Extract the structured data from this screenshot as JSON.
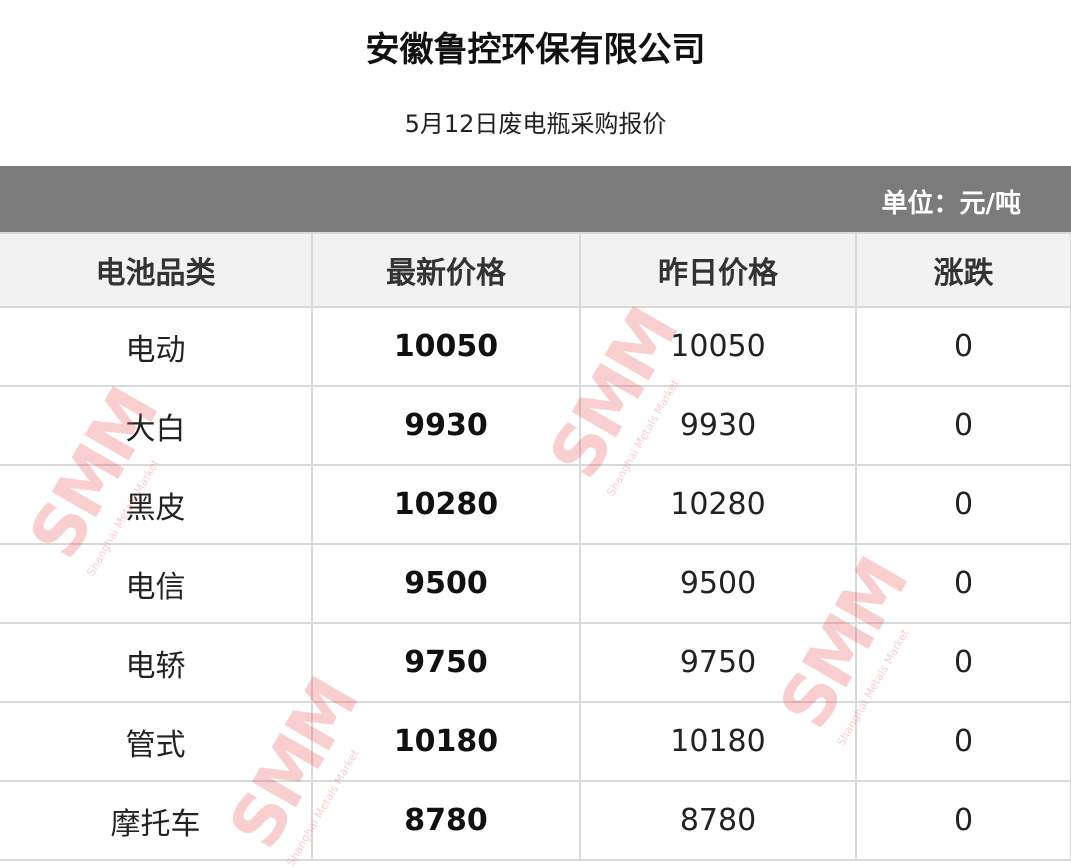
{
  "header": {
    "title": "安徽鲁控环保有限公司",
    "subtitle": "5月12日废电瓶采购报价",
    "unit": "单位：元/吨"
  },
  "table": {
    "columns": [
      "电池品类",
      "最新价格",
      "昨日价格",
      "涨跌"
    ],
    "rows": [
      {
        "type": "电动",
        "latest": "10050",
        "yesterday": "10050",
        "change": "0"
      },
      {
        "type": "大白",
        "latest": "9930",
        "yesterday": "9930",
        "change": "0"
      },
      {
        "type": "黑皮",
        "latest": "10280",
        "yesterday": "10280",
        "change": "0"
      },
      {
        "type": "电信",
        "latest": "9500",
        "yesterday": "9500",
        "change": "0"
      },
      {
        "type": "电轿",
        "latest": "9750",
        "yesterday": "9750",
        "change": "0"
      },
      {
        "type": "管式",
        "latest": "10180",
        "yesterday": "10180",
        "change": "0"
      },
      {
        "type": "摩托车",
        "latest": "8780",
        "yesterday": "8780",
        "change": "0"
      }
    ]
  },
  "watermark": {
    "text": "SMM",
    "subtext": "Shanghai Metals Market",
    "color": "#eb5050"
  },
  "colors": {
    "unit_bar": "#7b7b7b",
    "header_bg": "#f2f2f2",
    "border": "#d9d9d9"
  }
}
